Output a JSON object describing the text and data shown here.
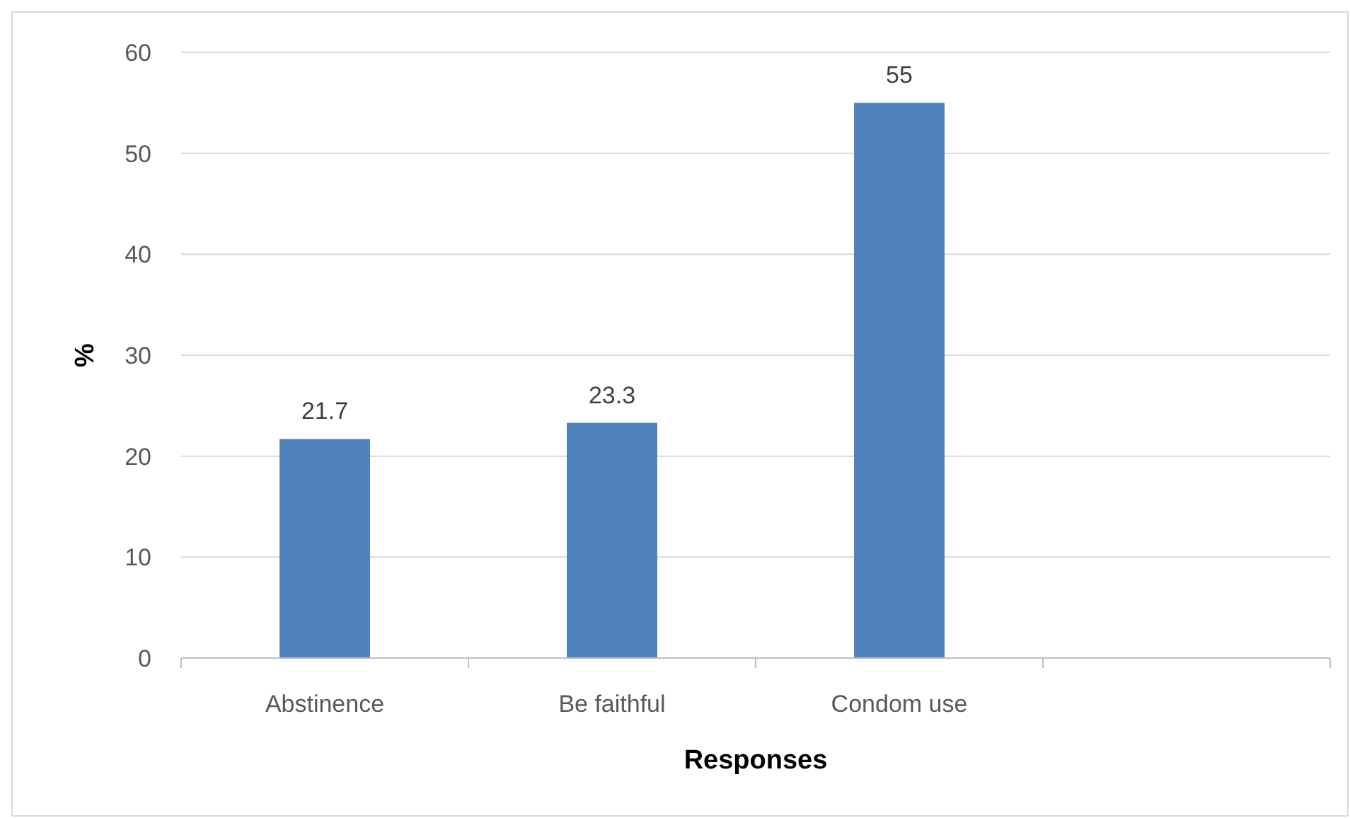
{
  "chart_data": {
    "type": "bar",
    "xlabel": "Responses",
    "ylabel": "%",
    "categories": [
      "Abstinence",
      "Be faithful",
      "Condom use",
      null
    ],
    "values": [
      21.7,
      23.3,
      55,
      null
    ],
    "color": "#4f81bd",
    "ylim": [
      0,
      60
    ],
    "yticks": [
      0,
      10,
      20,
      30,
      40,
      50,
      60
    ],
    "grid": "y",
    "data_labels": true
  }
}
